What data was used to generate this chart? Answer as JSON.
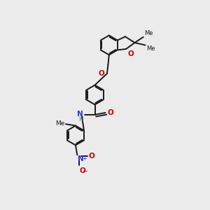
{
  "bg_color": "#ebebeb",
  "bond_color": "#1a1a1a",
  "o_color": "#cc0000",
  "n_color": "#3333cc",
  "h_color": "#557777",
  "lw": 1.4,
  "r_benz": 0.48,
  "xlim": [
    0.5,
    7.5
  ],
  "ylim": [
    0.2,
    10.5
  ]
}
